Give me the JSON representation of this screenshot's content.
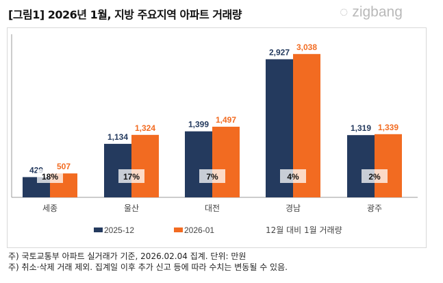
{
  "title": "[그림1] 2026년 1월, 지방 주요지역 아파트 거래량",
  "logo": "zigbang",
  "chart_data": {
    "type": "bar",
    "categories": [
      "세종",
      "울산",
      "대전",
      "경남",
      "광주"
    ],
    "series": [
      {
        "name": "2025-12",
        "values": [
          429,
          1134,
          1399,
          2927,
          1319
        ],
        "color": "#243a5e"
      },
      {
        "name": "2026-01",
        "values": [
          507,
          1324,
          1497,
          3038,
          1339
        ],
        "color": "#f26b21"
      }
    ],
    "change_labels": [
      "18%",
      "17%",
      "7%",
      "4%",
      "2%"
    ],
    "change_legend": "12월 대비 1월 거래량",
    "value_labels_12": [
      "429",
      "1,134",
      "1,399",
      "2,927",
      "1,319"
    ],
    "value_labels_01": [
      "507",
      "1,324",
      "1,497",
      "3,038",
      "1,339"
    ],
    "ylim": [
      0,
      3500
    ],
    "grid": false,
    "legend": "bottom"
  },
  "notes": [
    "주) 국토교통부 아파트 실거래가 기준, 2026.02.04 집계. 단위: 만원",
    "주) 취소·삭제 거래 제외. 집계일 이후 추가 신고 등에 따라 수치는 변동될 수 있음."
  ]
}
